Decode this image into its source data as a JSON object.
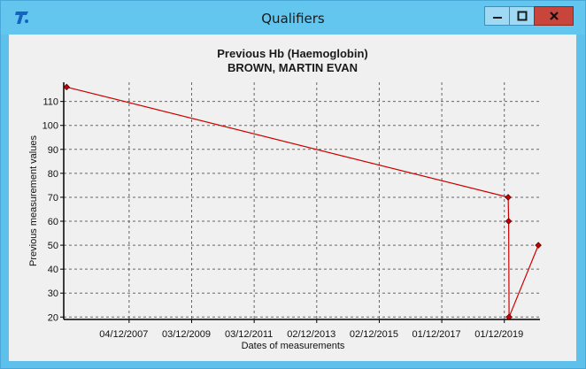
{
  "window": {
    "title": "Qualifiers",
    "icons": [
      "app-logo-icon",
      "minimize-icon",
      "maximize-icon",
      "close-icon"
    ]
  },
  "chart_data": {
    "type": "line",
    "title": "Previous Hb (Haemoglobin)",
    "subtitle": "BROWN, MARTIN EVAN",
    "xlabel": "Dates of measurements",
    "ylabel": "Previous measurement values",
    "x_tick_labels": [
      "04/12/2007",
      "03/12/2009",
      "03/12/2011",
      "02/12/2013",
      "02/12/2015",
      "01/12/2017",
      "01/12/2019"
    ],
    "y_ticks": [
      20,
      30,
      40,
      50,
      60,
      70,
      80,
      90,
      100,
      110
    ],
    "ylim": [
      19,
      118
    ],
    "xlim": [
      "2005-11-01",
      "2021-01-20"
    ],
    "grid": true,
    "series": [
      {
        "color": "#cc0000",
        "points": [
          {
            "x": "2005-12-05",
            "y": 116
          },
          {
            "x": "2020-01-15",
            "y": 70
          },
          {
            "x": "2020-01-20",
            "y": 60
          },
          {
            "x": "2020-01-25",
            "y": 20
          },
          {
            "x": "2021-01-01",
            "y": 50
          }
        ]
      }
    ]
  }
}
